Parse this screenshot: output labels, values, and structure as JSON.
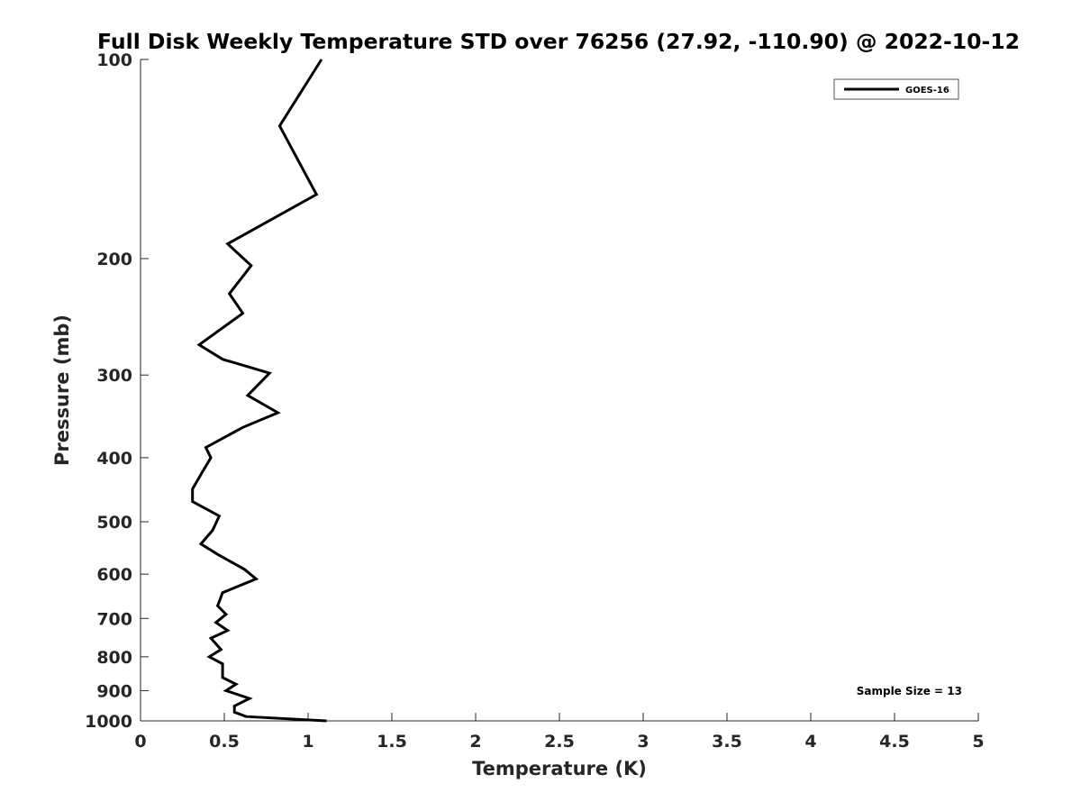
{
  "chart_data": {
    "type": "line",
    "title": "Full Disk Weekly Temperature STD over 76256 (27.92, -110.90) @ 2022-10-12",
    "xlabel": "Temperature (K)",
    "ylabel": "Pressure (mb)",
    "xlim": [
      0,
      5
    ],
    "ylim": [
      100,
      1000
    ],
    "y_scale": "log",
    "y_reversed": true,
    "grid": false,
    "legend_position": "top-right",
    "x_ticks": [
      {
        "value": 0,
        "label": "0"
      },
      {
        "value": 0.5,
        "label": "0.5"
      },
      {
        "value": 1,
        "label": "1"
      },
      {
        "value": 1.5,
        "label": "1.5"
      },
      {
        "value": 2,
        "label": "2"
      },
      {
        "value": 2.5,
        "label": "2.5"
      },
      {
        "value": 3,
        "label": "3"
      },
      {
        "value": 3.5,
        "label": "3.5"
      },
      {
        "value": 4,
        "label": "4"
      },
      {
        "value": 4.5,
        "label": "4.5"
      },
      {
        "value": 5,
        "label": "5"
      }
    ],
    "y_ticks": [
      {
        "value": 100,
        "label": "100"
      },
      {
        "value": 200,
        "label": "200"
      },
      {
        "value": 300,
        "label": "300"
      },
      {
        "value": 400,
        "label": "400"
      },
      {
        "value": 500,
        "label": "500"
      },
      {
        "value": 600,
        "label": "600"
      },
      {
        "value": 700,
        "label": "700"
      },
      {
        "value": 800,
        "label": "800"
      },
      {
        "value": 900,
        "label": "900"
      },
      {
        "value": 1000,
        "label": "1000"
      }
    ],
    "series": [
      {
        "name": "GOES-16",
        "color": "#000000",
        "x": [
          1.08,
          0.83,
          1.05,
          0.52,
          0.66,
          0.53,
          0.61,
          0.35,
          0.49,
          0.77,
          0.64,
          0.82,
          0.61,
          0.39,
          0.42,
          0.37,
          0.31,
          0.31,
          0.47,
          0.43,
          0.36,
          0.46,
          0.62,
          0.69,
          0.49,
          0.46,
          0.51,
          0.45,
          0.52,
          0.42,
          0.48,
          0.41,
          0.49,
          0.49,
          0.57,
          0.51,
          0.65,
          0.56,
          0.56,
          0.63,
          1.11
        ],
        "y": [
          100,
          126,
          160,
          190,
          205,
          226,
          242,
          270,
          284,
          298,
          322,
          342,
          360,
          386,
          400,
          420,
          446,
          466,
          490,
          515,
          540,
          560,
          590,
          610,
          640,
          670,
          690,
          710,
          730,
          750,
          780,
          800,
          820,
          860,
          880,
          900,
          925,
          950,
          970,
          985,
          1000
        ]
      }
    ],
    "annotation": "Sample Size = 13"
  }
}
